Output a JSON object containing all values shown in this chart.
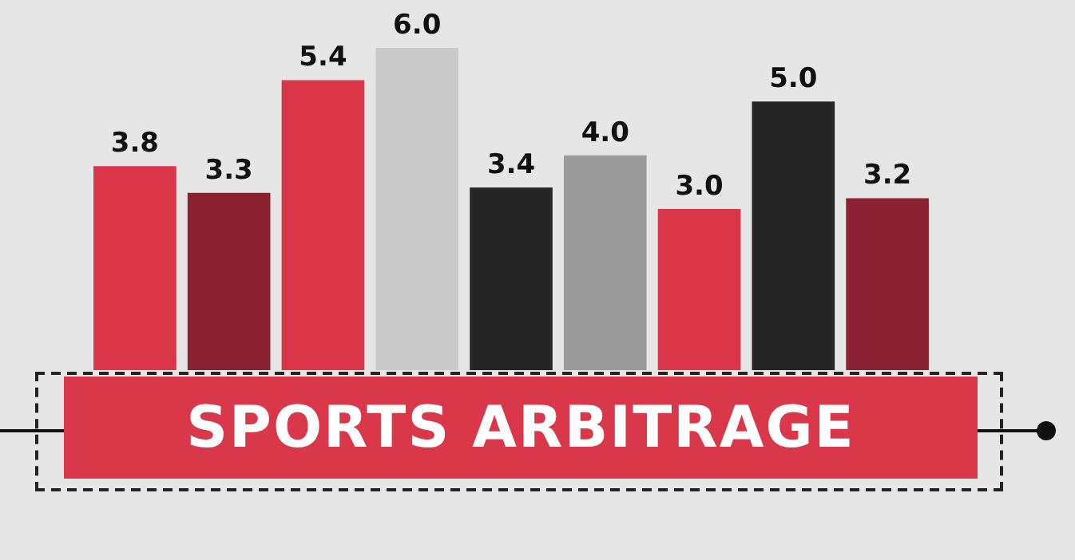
{
  "chart_data": {
    "type": "bar",
    "title": "SPORTS ARBITRAGE",
    "categories": [
      null,
      null,
      null,
      null,
      null,
      null,
      null,
      null,
      null
    ],
    "values": [
      3.8,
      3.3,
      5.4,
      6.0,
      3.4,
      4.0,
      3.0,
      5.0,
      3.2
    ],
    "colors": [
      "#d9364a",
      "#8a2232",
      "#d9364a",
      "#c9c9c9",
      "#262626",
      "#9b9b9b",
      "#d9364a",
      "#262626",
      "#8a2232"
    ],
    "value_labels": [
      "3.8",
      "3.3",
      "5.4",
      "6.0",
      "3.4",
      "4.0",
      "3.0",
      "5.0",
      "3.2"
    ],
    "legend": false,
    "tick_labels": false
  }
}
